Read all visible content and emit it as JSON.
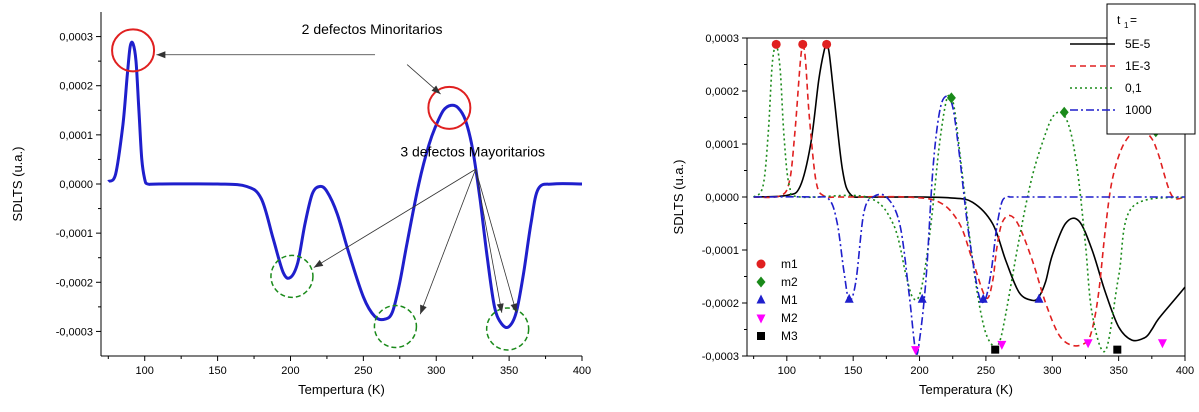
{
  "colors": {
    "blue": "#1f1fcc",
    "red": "#e02020",
    "green": "#1a8a1a",
    "black": "#000000",
    "magenta": "#ff00ff",
    "dashgreen": "#1a8a1a"
  },
  "chart_data": [
    {
      "type": "line",
      "xlabel": "Tempertura (K)",
      "ylabel": "SDLTS (u.a.)",
      "xlim": [
        70,
        400
      ],
      "ylim": [
        -0.00035,
        0.00035
      ],
      "xticks": [
        100,
        150,
        200,
        250,
        300,
        350,
        400
      ],
      "yticks": [
        -0.0003,
        -0.0002,
        -0.0001,
        0.0,
        0.0001,
        0.0002,
        0.0003
      ],
      "xtick_labels": [
        "100",
        "150",
        "200",
        "250",
        "300",
        "350",
        "400"
      ],
      "ytick_labels": [
        "-0,0003",
        "-0,0002",
        "-0,0001",
        "0,0000",
        "0,0001",
        "0,0002",
        "0,0003"
      ],
      "series": [
        {
          "color": "#1f1fcc",
          "x": [
            75,
            80,
            85,
            88,
            90,
            92,
            94,
            96,
            98,
            100,
            102,
            110,
            150,
            170,
            180,
            188,
            195,
            200,
            205,
            210,
            215,
            220,
            225,
            232,
            240,
            250,
            258,
            265,
            270,
            275,
            280,
            288,
            295,
            300,
            305,
            310,
            315,
            320,
            325,
            330,
            335,
            340,
            345,
            350,
            355,
            360,
            365,
            370,
            380,
            400
          ],
          "y": [
            5e-06,
            2e-05,
            0.00012,
            0.00022,
            0.00028,
            0.000285,
            0.00025,
            0.00015,
            5e-05,
            1e-05,
            0.0,
            0.0,
            0.0,
            -5e-06,
            -3e-05,
            -0.00011,
            -0.00018,
            -0.00019,
            -0.00016,
            -8e-05,
            -2e-05,
            -5e-06,
            -1.5e-05,
            -6e-05,
            -0.00014,
            -0.00023,
            -0.00027,
            -0.000275,
            -0.00026,
            -0.0002,
            -0.00012,
            0.0,
            8e-05,
            0.00012,
            0.00015,
            0.00016,
            0.000155,
            0.00013,
            7e-05,
            -3e-05,
            -0.00015,
            -0.00025,
            -0.000285,
            -0.00029,
            -0.00026,
            -0.00018,
            -8e-05,
            -1e-05,
            0.0,
            0.0
          ]
        }
      ],
      "annotations": [
        {
          "text": "2 defectos Minoritarios"
        },
        {
          "text": "3 defectos Mayoritarios"
        }
      ],
      "circles": [
        {
          "kind": "solid",
          "x": 92,
          "y": 0.000272
        },
        {
          "kind": "solid",
          "x": 309,
          "y": 0.000155
        },
        {
          "kind": "dashed",
          "x": 201,
          "y": -0.000188
        },
        {
          "kind": "dashed",
          "x": 272,
          "y": -0.00029
        },
        {
          "kind": "dashed",
          "x": 349,
          "y": -0.000295
        }
      ],
      "arrows": [
        {
          "from": [
            258,
            0.000263
          ],
          "to": [
            108,
            0.000263
          ]
        },
        {
          "from": [
            280,
            0.000243
          ],
          "to": [
            303,
            0.000183
          ]
        },
        {
          "from": [
            327,
            3e-05
          ],
          "to": [
            216,
            -0.00017
          ]
        },
        {
          "from": [
            327,
            3e-05
          ],
          "to": [
            289,
            -0.000265
          ]
        },
        {
          "from": [
            327,
            3e-05
          ],
          "to": [
            345,
            -0.000262
          ]
        },
        {
          "from": [
            327,
            3e-05
          ],
          "to": [
            355,
            -0.000262
          ]
        }
      ]
    },
    {
      "type": "line",
      "xlabel": "Temperatura (K)",
      "ylabel": "SDLTS (u.a.)",
      "xlim": [
        70,
        400
      ],
      "ylim": [
        -0.0003,
        0.0003
      ],
      "xticks": [
        100,
        150,
        200,
        250,
        300,
        350,
        400
      ],
      "yticks": [
        -0.0003,
        -0.0002,
        -0.0001,
        0.0,
        0.0001,
        0.0002,
        0.0003
      ],
      "xtick_labels": [
        "100",
        "150",
        "200",
        "250",
        "300",
        "350",
        "400"
      ],
      "ytick_labels": [
        "-0,0003",
        "-0,0002",
        "-0,0001",
        "0,0000",
        "0,0001",
        "0,0002",
        "0,0003"
      ],
      "legend_title": "t",
      "legend_title_sub": "1",
      "legend_title_suffix": "=",
      "legend_position": "top-right",
      "series": [
        {
          "name": "5E-5",
          "color": "#000000",
          "dash": "",
          "x": [
            75,
            100,
            110,
            118,
            124,
            128,
            130,
            132,
            136,
            142,
            148,
            160,
            200,
            225,
            240,
            255,
            265,
            275,
            285,
            290,
            295,
            300,
            310,
            320,
            330,
            340,
            350,
            360,
            370,
            375,
            380,
            390,
            400
          ],
          "y": [
            0.0,
            3e-06,
            2e-05,
            0.0001,
            0.00022,
            0.000275,
            0.000285,
            0.00027,
            0.00018,
            5e-05,
            5e-06,
            0.0,
            0.0,
            -2e-06,
            -1e-05,
            -5e-05,
            -0.00012,
            -0.00018,
            -0.000195,
            -0.000188,
            -0.00016,
            -0.00011,
            -5e-05,
            -4.5e-05,
            -0.0001,
            -0.00018,
            -0.000245,
            -0.00027,
            -0.000265,
            -0.00025,
            -0.00023,
            -0.0002,
            -0.00017
          ]
        },
        {
          "name": "1E-3",
          "color": "#e02020",
          "dash": "6,4",
          "x": [
            75,
            95,
            102,
            106,
            110,
            112,
            114,
            117,
            122,
            128,
            140,
            190,
            215,
            230,
            240,
            250,
            255,
            258,
            262,
            268,
            275,
            285,
            295,
            305,
            315,
            325,
            330,
            335,
            340,
            345,
            352,
            360,
            368,
            375,
            380,
            390,
            400
          ],
          "y": [
            0.0,
            2e-06,
            3e-05,
            0.00012,
            0.00025,
            0.000285,
            0.00026,
            0.00015,
            3e-05,
            2e-06,
            0.0,
            0.0,
            -1e-05,
            -5e-05,
            -0.00012,
            -0.00019,
            -0.00016,
            -0.0001,
            -5e-05,
            -3.5e-05,
            -5.5e-05,
            -0.00012,
            -0.0002,
            -0.00026,
            -0.00028,
            -0.000275,
            -0.00025,
            -0.00018,
            -6e-05,
            3e-05,
            9e-05,
            0.00012,
            0.000125,
            0.00011,
            8e-05,
            3e-06,
            0.0
          ]
        },
        {
          "name": "0,1",
          "color": "#1a8a1a",
          "dash": "2,3",
          "x": [
            75,
            82,
            86,
            89,
            92,
            95,
            98,
            102,
            110,
            160,
            180,
            190,
            195,
            200,
            205,
            210,
            215,
            220,
            223,
            226,
            230,
            240,
            248,
            255,
            260,
            265,
            275,
            285,
            295,
            300,
            305,
            310,
            315,
            320,
            325,
            330,
            340,
            350,
            360,
            400
          ],
          "y": [
            0.0,
            2e-05,
            0.00012,
            0.00025,
            0.000285,
            0.00024,
            0.00011,
            2e-05,
            0.0,
            0.0,
            -5e-05,
            -0.00015,
            -0.00019,
            -0.000185,
            -0.00012,
            -2e-05,
            0.0001,
            0.00018,
            0.00019,
            0.00017,
            9e-05,
            -0.00012,
            -0.00024,
            -0.00028,
            -0.000275,
            -0.00022,
            -8e-05,
            4e-05,
            0.00012,
            0.00015,
            0.00016,
            0.00015,
            0.00011,
            3e-05,
            -9e-05,
            -0.00022,
            -0.00029,
            -0.00015,
            -2e-05,
            0.0
          ]
        },
        {
          "name": "1000",
          "color": "#1f1fcc",
          "dash": "8,3,2,3",
          "x": [
            75,
            120,
            132,
            138,
            143,
            147,
            152,
            158,
            165,
            175,
            185,
            192,
            197,
            200,
            205,
            210,
            215,
            220,
            225,
            230,
            236,
            242,
            246,
            250,
            254,
            258,
            262,
            266,
            270,
            280,
            400
          ],
          "y": [
            0.0,
            0.0,
            -5e-06,
            -5e-05,
            -0.00014,
            -0.000195,
            -0.00016,
            -3e-05,
            0.0,
            0.0,
            -5e-05,
            -0.00018,
            -0.00029,
            -0.00027,
            -0.00015,
            5e-05,
            0.00016,
            0.00019,
            0.00017,
            8e-05,
            -5e-05,
            -0.00015,
            -0.000195,
            -0.00019,
            -0.00014,
            -6e-05,
            -1e-05,
            0.0,
            0.0,
            0.0,
            0.0
          ]
        }
      ],
      "markers": [
        {
          "name": "m1",
          "shape": "circle",
          "color": "#e02020",
          "points": [
            [
              92,
              0.000288
            ],
            [
              112,
              0.000288
            ],
            [
              130,
              0.000288
            ]
          ]
        },
        {
          "name": "m2",
          "shape": "diamond",
          "color": "#1a8a1a",
          "points": [
            [
              224,
              0.000187
            ],
            [
              309,
              0.00016
            ],
            [
              378,
              0.000123
            ]
          ]
        },
        {
          "name": "M1",
          "shape": "triangle-up",
          "color": "#1f1fcc",
          "points": [
            [
              147,
              -0.000193
            ],
            [
              202,
              -0.000193
            ],
            [
              248,
              -0.000193
            ],
            [
              290,
              -0.000193
            ]
          ]
        },
        {
          "name": "M2",
          "shape": "triangle-down",
          "color": "#ff00ff",
          "points": [
            [
              197,
              -0.000288
            ],
            [
              262,
              -0.000278
            ],
            [
              327,
              -0.000275
            ],
            [
              383,
              -0.000275
            ]
          ]
        },
        {
          "name": "M3",
          "shape": "square",
          "color": "#000000",
          "points": [
            [
              257,
              -0.000288
            ],
            [
              349,
              -0.000288
            ]
          ]
        }
      ]
    }
  ]
}
